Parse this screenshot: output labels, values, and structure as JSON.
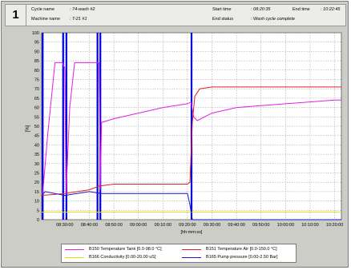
{
  "header": {
    "number": "1",
    "cycle_name_label": "Cycle name",
    "cycle_name_value": ": 74-wash #2",
    "machine_name_label": "Machine name",
    "machine_name_value": ": T-21 #1",
    "start_time_label": "Start time",
    "start_time_value": ": 08:20:35",
    "end_time_label": "End time",
    "end_time_value": ": 10:22:45",
    "end_status_label": "End status",
    "end_status_value": ": Wash cycle complete"
  },
  "colors": {
    "temp_tank": "#e020e0",
    "temp_air": "#e02020",
    "conductivity": "#e0e000",
    "pump_pressure": "#1818c8",
    "event_marker": "#0000e0",
    "plot_bg": "#ffffff",
    "grid": "#9a9a9a"
  },
  "chart_data": {
    "type": "line",
    "ylabel": "[%]",
    "xlabel": "[hh:mm:ss]",
    "ylim": [
      0,
      100
    ],
    "xlim": [
      "08:20:35",
      "10:22:45"
    ],
    "y_ticks": [
      0,
      5,
      10,
      15,
      20,
      25,
      30,
      35,
      40,
      45,
      50,
      55,
      60,
      65,
      70,
      75,
      80,
      85,
      90,
      95,
      100
    ],
    "x_ticks": [
      "08:30:00",
      "08:40:00",
      "08:50:00",
      "09:00:00",
      "09:10:00",
      "09:20:00",
      "09:30:00",
      "09:40:00",
      "09:50:00",
      "10:00:00",
      "10:10:00",
      "10:20:00"
    ],
    "grid": true,
    "legend": "bottom",
    "event_markers": [
      "08:21:00",
      "08:29:20",
      "08:30:40",
      "08:43:20",
      "08:44:30",
      "09:21:40"
    ],
    "series": [
      {
        "name": "B150 Temperature Tank [0.0-98.0 °C]",
        "color_key": "temp_tank",
        "x": [
          "08:20:35",
          "08:21:00",
          "08:23:00",
          "08:26:00",
          "08:29:00",
          "08:30:00",
          "08:30:30",
          "08:32:00",
          "08:34:00",
          "08:44:00",
          "08:44:30",
          "08:45:00",
          "08:50:00",
          "09:00:00",
          "09:10:00",
          "09:20:00",
          "09:21:30",
          "09:22:30",
          "09:24:00",
          "09:30:00",
          "09:40:00",
          "09:50:00",
          "10:00:00",
          "10:10:00",
          "10:20:00",
          "10:22:45"
        ],
        "values": [
          13,
          14,
          45,
          84,
          84,
          81,
          13,
          60,
          84,
          84,
          16,
          52,
          54,
          57,
          60,
          62,
          63,
          55,
          53,
          57,
          60,
          61,
          62,
          63,
          64,
          64
        ]
      },
      {
        "name": "B151 Temperature Air [0.0-150.0 °C]",
        "color_key": "temp_air",
        "x": [
          "08:20:35",
          "08:30:00",
          "08:40:00",
          "08:44:00",
          "08:50:00",
          "09:00:00",
          "09:10:00",
          "09:20:00",
          "09:21:00",
          "09:22:00",
          "09:23:00",
          "09:25:00",
          "09:30:00",
          "10:00:00",
          "10:22:45"
        ],
        "values": [
          13,
          14,
          16,
          18,
          19,
          19,
          19,
          19,
          20,
          52,
          66,
          70,
          71,
          71,
          71
        ]
      },
      {
        "name": "B166 Conductivity [0.00-20.00 uS]",
        "color_key": "conductivity",
        "x": [
          "08:20:35",
          "10:22:45"
        ],
        "values": [
          4,
          4
        ]
      },
      {
        "name": "B165 Pump pressure [0.00-2.50 Bar]",
        "color_key": "pump_pressure",
        "x": [
          "08:20:35",
          "08:22:00",
          "08:26:00",
          "08:30:00",
          "08:35:00",
          "08:40:00",
          "08:45:00",
          "08:50:00",
          "09:00:00",
          "09:10:00",
          "09:20:00",
          "09:21:00",
          "09:22:00",
          "10:22:45"
        ],
        "values": [
          13,
          15,
          14,
          13,
          14,
          15,
          14,
          14,
          14,
          14,
          14,
          8,
          0,
          0
        ]
      }
    ]
  }
}
